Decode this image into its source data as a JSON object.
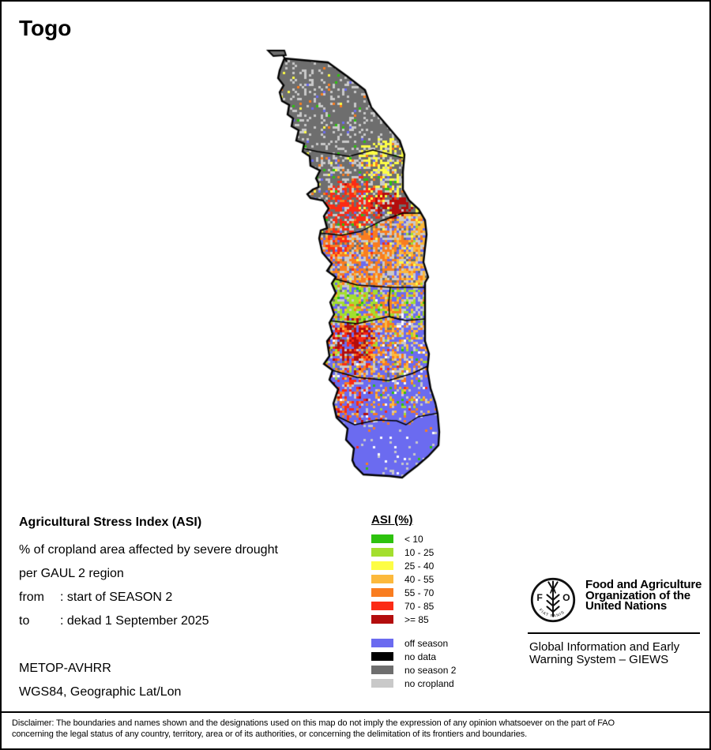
{
  "title": "Togo",
  "legend": {
    "title": "ASI (%)",
    "classes": [
      {
        "label": "< 10",
        "color": "#2DC20E"
      },
      {
        "label": "10 - 25",
        "color": "#A3DF2E"
      },
      {
        "label": "25 - 40",
        "color": "#FDFD45"
      },
      {
        "label": "40 - 55",
        "color": "#FCB93C"
      },
      {
        "label": "55 - 70",
        "color": "#F97D20"
      },
      {
        "label": "70 - 85",
        "color": "#FB2B15"
      },
      {
        "label": ">= 85",
        "color": "#B30D0D"
      }
    ],
    "extra_classes": [
      {
        "label": "off season",
        "color": "#6B6BF0"
      },
      {
        "label": "no data",
        "color": "#000000"
      },
      {
        "label": "no season 2",
        "color": "#6E6E6E"
      },
      {
        "label": "no cropland",
        "color": "#C9C9C9"
      }
    ]
  },
  "info": {
    "heading": "Agricultural Stress Index (ASI)",
    "line1": "% of cropland area affected by severe drought",
    "line2": "per GAUL 2 region",
    "from_label": "from",
    "from_value": ": start of SEASON 2",
    "to_label": "to",
    "to_value": ": dekad 1 September 2025",
    "sensor": "METOP-AVHRR",
    "projection": "WGS84, Geographic Lat/Lon"
  },
  "branding": {
    "logo_letters": [
      "F",
      "A",
      "O"
    ],
    "logo_motto": "FIAT PANIS",
    "fao_name_lines": [
      "Food and Agriculture",
      "Organization of the",
      "United Nations"
    ],
    "giews_lines": [
      "Global Information and Early",
      "Warning System – GIEWS"
    ]
  },
  "footer": {
    "disclaimer_line1": "Disclaimer: The boundaries and names shown and the designations used on this map do not imply the expression of any opinion whatsoever on the part of FAO",
    "disclaimer_line2": "concerning the legal status of any country, territory, area or of its authorities, or concerning the delimitation of its frontiers and boundaries."
  }
}
